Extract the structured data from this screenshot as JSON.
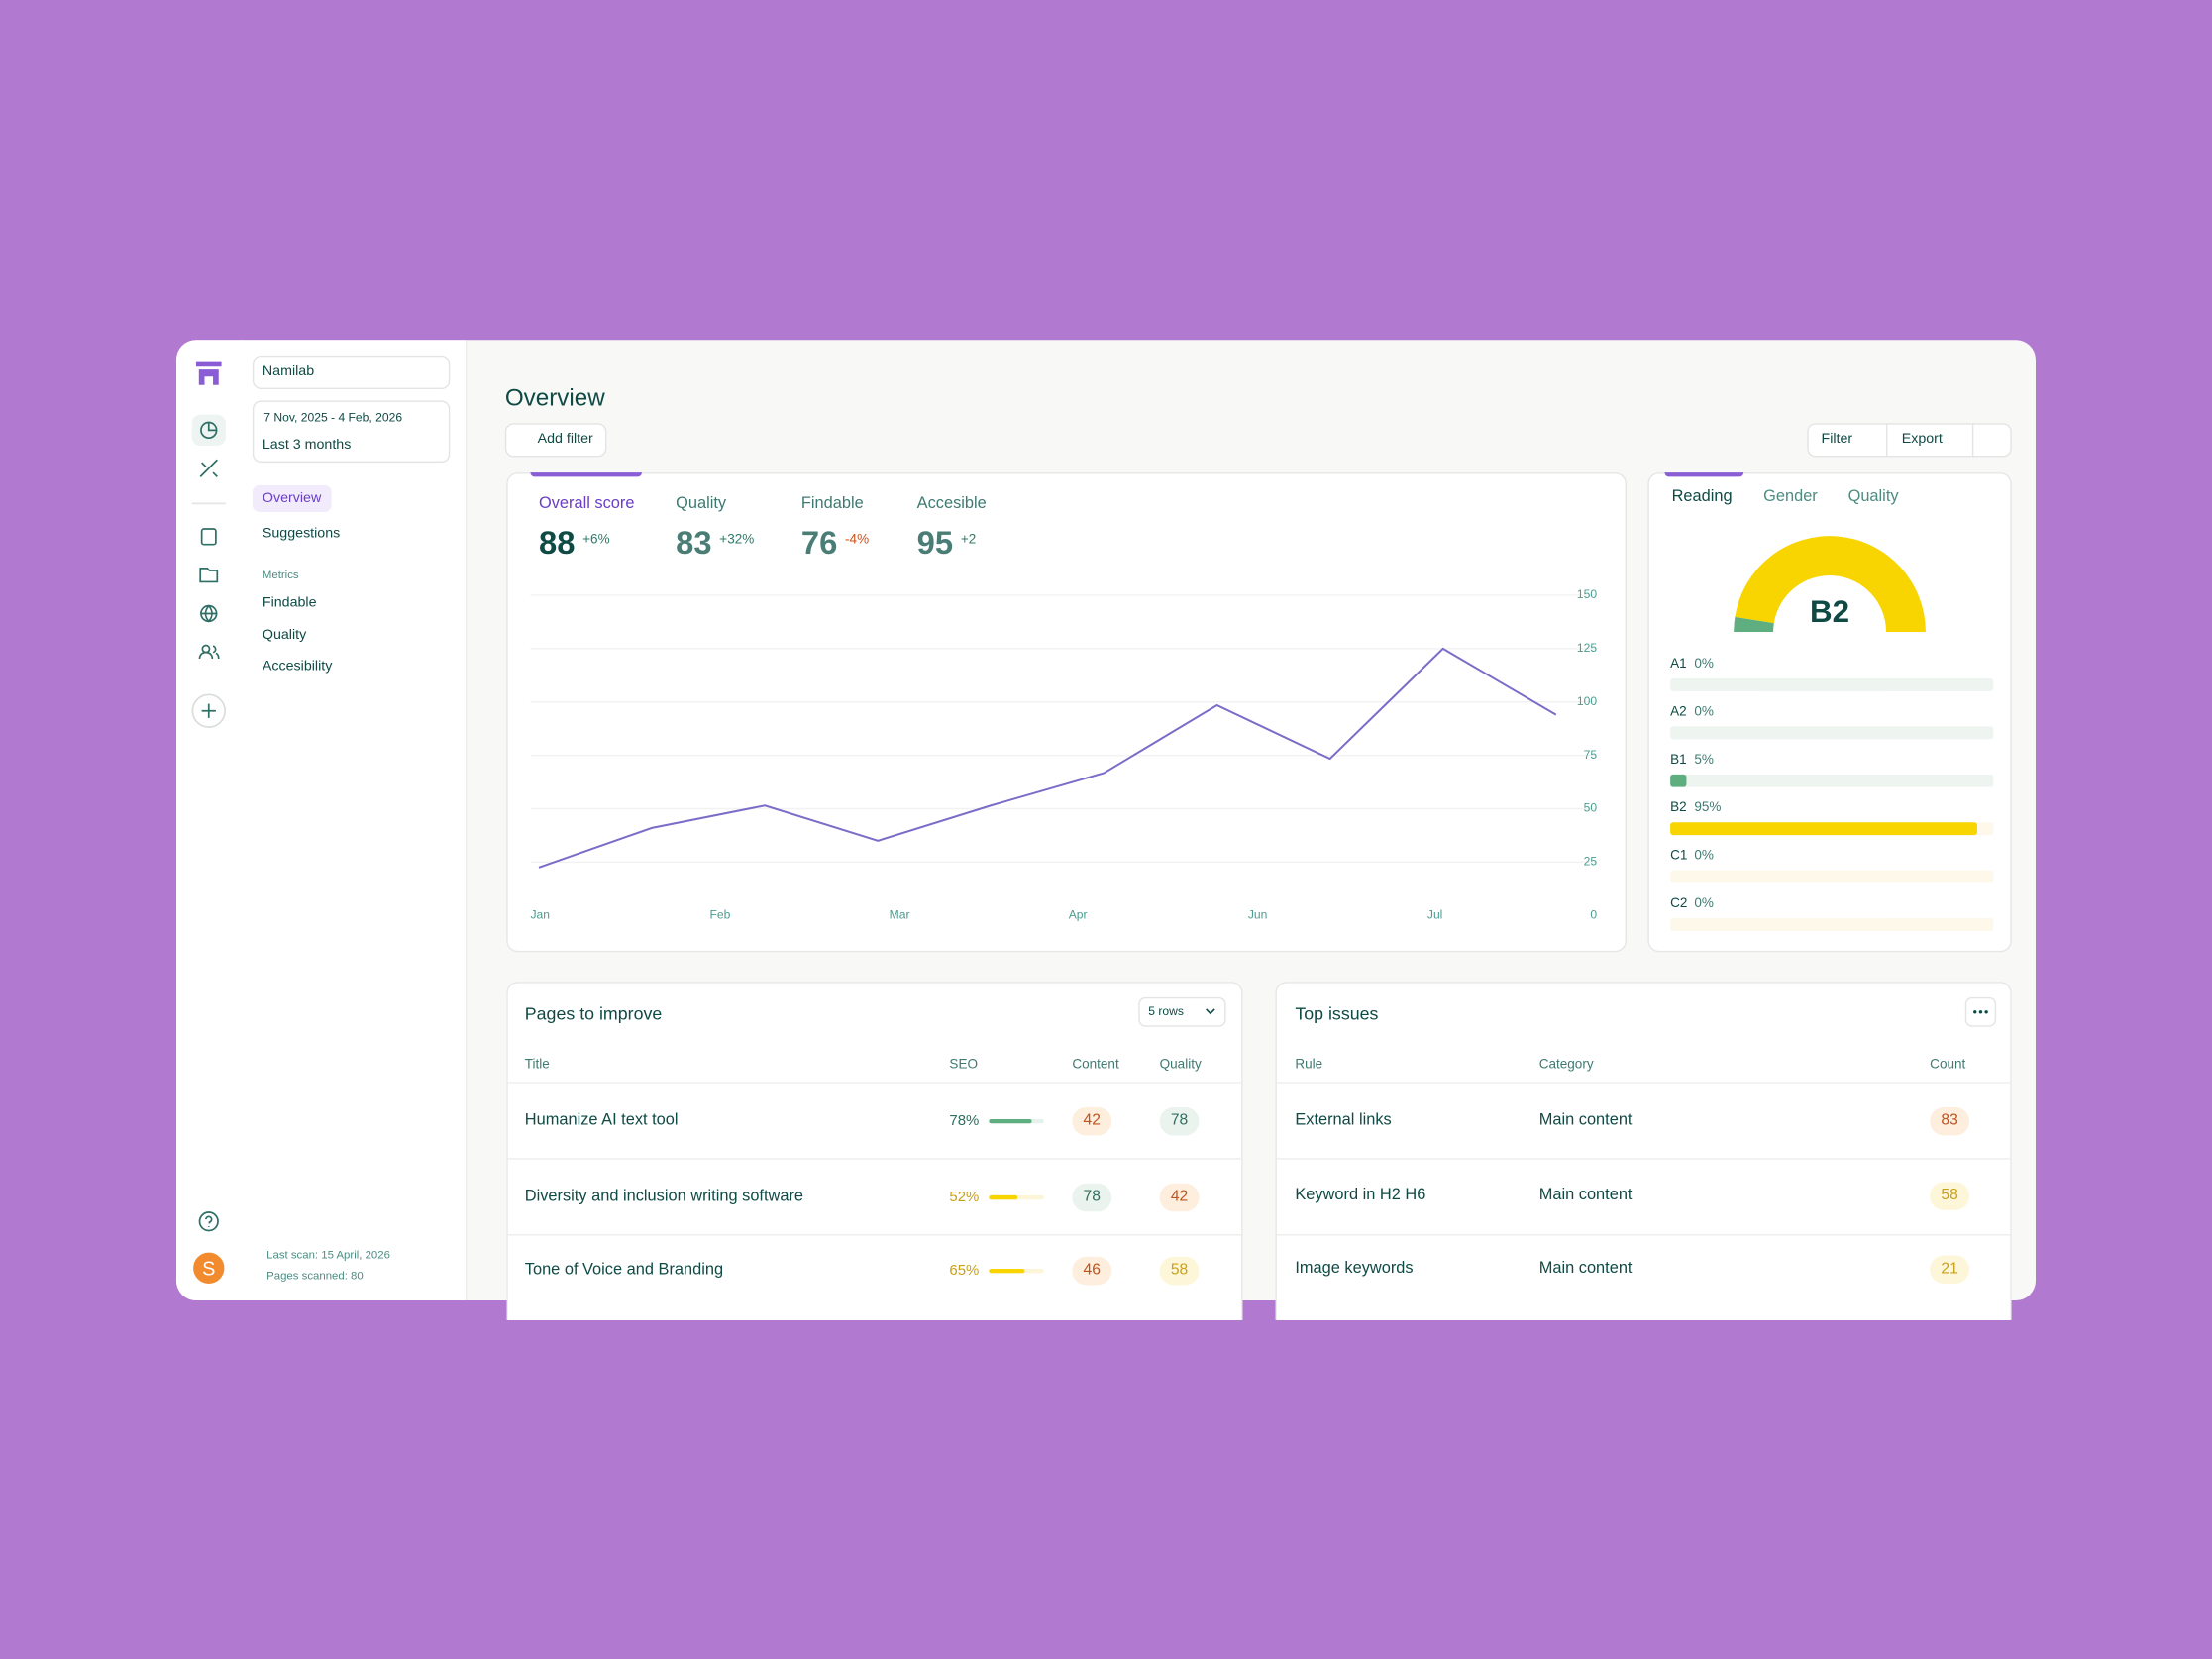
{
  "sidebar": {
    "workspace": "Namilab",
    "date_range": "7 Nov, 2025 - 4 Feb, 2026",
    "period": "Last 3 months",
    "nav": [
      "Overview",
      "Suggestions"
    ],
    "metrics_heading": "Metrics",
    "metrics_nav": [
      "Findable",
      "Quality",
      "Accesibility"
    ],
    "last_scan": "Last scan: 15 April, 2026",
    "pages_scanned": "Pages scanned: 80",
    "avatar": "S"
  },
  "header": {
    "title": "Overview",
    "add_filter": "Add filter",
    "filter": "Filter",
    "export": "Export"
  },
  "scores": [
    {
      "label": "Overall score",
      "value": 88,
      "delta": "+6%"
    },
    {
      "label": "Quality",
      "value": 83,
      "delta": "+32%"
    },
    {
      "label": "Findable",
      "value": 76,
      "delta": "-4%"
    },
    {
      "label": "Accesible",
      "value": 95,
      "delta": "+2"
    }
  ],
  "chart_data": {
    "type": "line",
    "x": [
      0,
      0.63,
      1.26,
      1.89,
      2.52,
      3.15,
      3.78,
      4.41,
      5.04,
      5.67
    ],
    "values": [
      22.5,
      41,
      51.5,
      35,
      51.5,
      66.7,
      98.5,
      73.4,
      125,
      94
    ],
    "color": "#7b6cc8",
    "xlim": [
      0,
      5.67
    ],
    "xticks": [
      {
        "value": 0,
        "label": "Jan"
      },
      {
        "value": 1,
        "label": "Feb"
      },
      {
        "value": 2,
        "label": "Mar"
      },
      {
        "value": 3,
        "label": "Apr"
      },
      {
        "value": 4,
        "label": "Jun"
      },
      {
        "value": 5,
        "label": "Jul"
      }
    ],
    "ylim": [
      0,
      150
    ],
    "yticks": [
      0,
      25,
      50,
      75,
      100,
      125,
      150
    ],
    "grid": true
  },
  "reading": {
    "tabs": [
      "Reading",
      "Gender",
      "Quality"
    ],
    "level": "B2",
    "levels": [
      {
        "name": "A1",
        "value": 0,
        "label": "0%",
        "color": "#5fae80"
      },
      {
        "name": "A2",
        "value": 0,
        "label": "0%",
        "color": "#5fae80"
      },
      {
        "name": "B1",
        "value": 5,
        "label": "5%",
        "color": "#5fae80"
      },
      {
        "name": "B2",
        "value": 95,
        "label": "95%",
        "color": "#f8d400"
      },
      {
        "name": "C1",
        "value": 0,
        "label": "0%",
        "color": "#f8d400"
      },
      {
        "name": "C2",
        "value": 0,
        "label": "0%",
        "color": "#f8d400"
      }
    ]
  },
  "pages": {
    "title": "Pages to improve",
    "rows_select": "5 rows",
    "columns": [
      "Title",
      "SEO",
      "Content",
      "Quality"
    ],
    "rows": [
      {
        "title": "Humanize AI text tool",
        "seo": {
          "value": 78,
          "label": "78%"
        },
        "content": 42,
        "quality": 78
      },
      {
        "title": "Diversity and inclusion writing software",
        "seo": {
          "value": 52,
          "label": "52%"
        },
        "content": 78,
        "quality": 42
      },
      {
        "title": "Tone of Voice and Branding",
        "seo": {
          "value": 65,
          "label": "65%"
        },
        "content": 46,
        "quality": 58
      }
    ]
  },
  "issues": {
    "title": "Top issues",
    "columns": [
      "Rule",
      "Category",
      "Count"
    ],
    "rows": [
      {
        "rule": "External links",
        "category": "Main content",
        "count": 83
      },
      {
        "rule": "Keyword in H2 H6",
        "category": "Main content",
        "count": 58
      },
      {
        "rule": "Image keywords",
        "category": "Main content",
        "count": 21
      }
    ]
  }
}
